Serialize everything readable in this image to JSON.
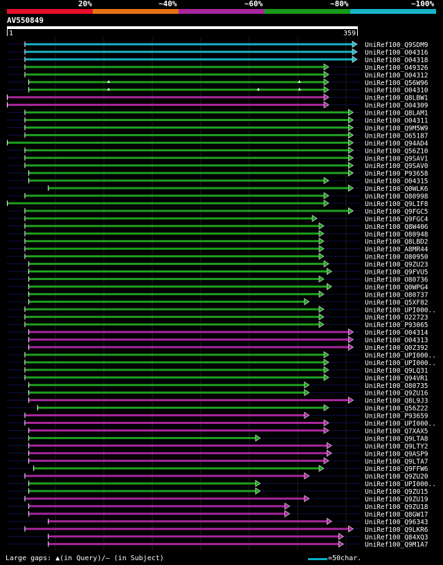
{
  "legend": {
    "bins": [
      {
        "label": "20%",
        "color": "#e8102a"
      },
      {
        "label": "~40%",
        "color": "#e57217"
      },
      {
        "label": "~60%",
        "color": "#a8279d"
      },
      {
        "label": "~80%",
        "color": "#1a9a1a"
      },
      {
        "label": "~100%",
        "color": "#18b4c8"
      }
    ]
  },
  "query": {
    "name": "AV550849",
    "start": "1",
    "end": "359",
    "length": 359
  },
  "chart_data": {
    "type": "alignment",
    "colors": {
      "cyan": "#18b4c8",
      "green": "#1fa01f",
      "magenta": "#a8279d"
    },
    "hits": [
      {
        "name": "UniRef100_Q9SDM9",
        "color": "cyan",
        "segments": [
          [
            19,
            359
          ]
        ]
      },
      {
        "name": "UniRef100_O04316",
        "color": "cyan",
        "segments": [
          [
            19,
            359
          ]
        ]
      },
      {
        "name": "UniRef100_O04318",
        "color": "cyan",
        "segments": [
          [
            19,
            359
          ]
        ]
      },
      {
        "name": "UniRef100_O49326",
        "color": "green",
        "segments": [
          [
            19,
            330
          ]
        ]
      },
      {
        "name": "UniRef100_O04312",
        "color": "green",
        "segments": [
          [
            19,
            330
          ]
        ]
      },
      {
        "name": "UniRef100_Q56W96",
        "color": "green",
        "segments": [
          [
            23,
            330
          ]
        ],
        "gaps": [
          105,
          300
        ]
      },
      {
        "name": "UniRef100_O04310",
        "color": "green",
        "segments": [
          [
            23,
            330
          ]
        ],
        "gaps": [
          105,
          258,
          300
        ]
      },
      {
        "name": "UniRef100_Q8LBW1",
        "color": "magenta",
        "segments": [
          [
            1,
            330
          ]
        ]
      },
      {
        "name": "UniRef100_O04309",
        "color": "magenta",
        "segments": [
          [
            1,
            330
          ]
        ]
      },
      {
        "name": "UniRef100_Q8LAM1",
        "color": "green",
        "segments": [
          [
            19,
            355
          ]
        ]
      },
      {
        "name": "UniRef100_O04311",
        "color": "green",
        "segments": [
          [
            19,
            355
          ]
        ]
      },
      {
        "name": "UniRef100_Q9M5W9",
        "color": "green",
        "segments": [
          [
            19,
            355
          ]
        ]
      },
      {
        "name": "UniRef100_O65187",
        "color": "green",
        "segments": [
          [
            19,
            355
          ]
        ]
      },
      {
        "name": "UniRef100_Q94AD4",
        "color": "green",
        "segments": [
          [
            1,
            355
          ]
        ]
      },
      {
        "name": "UniRef100_Q56Z10",
        "color": "green",
        "segments": [
          [
            19,
            355
          ]
        ]
      },
      {
        "name": "UniRef100_Q9SAV1",
        "color": "green",
        "segments": [
          [
            19,
            355
          ]
        ]
      },
      {
        "name": "UniRef100_Q9SAV0",
        "color": "green",
        "segments": [
          [
            19,
            355
          ]
        ]
      },
      {
        "name": "UniRef100_P93658",
        "color": "green",
        "segments": [
          [
            23,
            355
          ]
        ]
      },
      {
        "name": "UniRef100_O04315",
        "color": "green",
        "segments": [
          [
            23,
            330
          ]
        ]
      },
      {
        "name": "UniRef100_Q0WLK6",
        "color": "green",
        "segments": [
          [
            43,
            355
          ]
        ]
      },
      {
        "name": "UniRef100_O80998",
        "color": "green",
        "segments": [
          [
            19,
            330
          ]
        ]
      },
      {
        "name": "UniRef100_Q9LIF8",
        "color": "green",
        "segments": [
          [
            1,
            330
          ]
        ]
      },
      {
        "name": "UniRef100_Q9FGC5",
        "color": "green",
        "segments": [
          [
            19,
            355
          ]
        ]
      },
      {
        "name": "UniRef100_Q9FGC4",
        "color": "green",
        "segments": [
          [
            19,
            318
          ]
        ]
      },
      {
        "name": "UniRef100_Q8W406",
        "color": "green",
        "segments": [
          [
            19,
            325
          ]
        ]
      },
      {
        "name": "UniRef100_O80948",
        "color": "green",
        "segments": [
          [
            19,
            325
          ]
        ]
      },
      {
        "name": "UniRef100_Q8LBD2",
        "color": "green",
        "segments": [
          [
            19,
            325
          ]
        ]
      },
      {
        "name": "UniRef100_A8MR44",
        "color": "green",
        "segments": [
          [
            19,
            325
          ]
        ]
      },
      {
        "name": "UniRef100_O80950",
        "color": "green",
        "segments": [
          [
            19,
            325
          ]
        ]
      },
      {
        "name": "UniRef100_Q9ZU23",
        "color": "green",
        "segments": [
          [
            23,
            330
          ]
        ]
      },
      {
        "name": "UniRef100_Q9FVU5",
        "color": "green",
        "segments": [
          [
            23,
            333
          ]
        ]
      },
      {
        "name": "UniRef100_O80736",
        "color": "green",
        "segments": [
          [
            23,
            325
          ]
        ]
      },
      {
        "name": "UniRef100_Q0WPG4",
        "color": "green",
        "segments": [
          [
            23,
            333
          ]
        ]
      },
      {
        "name": "UniRef100_O80737",
        "color": "green",
        "segments": [
          [
            23,
            325
          ]
        ]
      },
      {
        "name": "UniRef100_Q5XF82",
        "color": "green",
        "segments": [
          [
            23,
            310
          ]
        ]
      },
      {
        "name": "UniRef100_UPI000..",
        "color": "green",
        "segments": [
          [
            19,
            325
          ]
        ]
      },
      {
        "name": "UniRef100_O22723",
        "color": "green",
        "segments": [
          [
            19,
            325
          ]
        ]
      },
      {
        "name": "UniRef100_P93065",
        "color": "green",
        "segments": [
          [
            19,
            325
          ]
        ]
      },
      {
        "name": "UniRef100_O04314",
        "color": "magenta",
        "segments": [
          [
            23,
            355
          ]
        ]
      },
      {
        "name": "UniRef100_O04313",
        "color": "magenta",
        "segments": [
          [
            23,
            355
          ]
        ]
      },
      {
        "name": "UniRef100_Q0Z392",
        "color": "magenta",
        "segments": [
          [
            23,
            355
          ]
        ]
      },
      {
        "name": "UniRef100_UPI000..",
        "color": "green",
        "segments": [
          [
            19,
            330
          ]
        ]
      },
      {
        "name": "UniRef100_UPI000..",
        "color": "green",
        "segments": [
          [
            19,
            330
          ]
        ]
      },
      {
        "name": "UniRef100_Q9LQ31",
        "color": "green",
        "segments": [
          [
            19,
            330
          ]
        ]
      },
      {
        "name": "UniRef100_Q94VR1",
        "color": "green",
        "segments": [
          [
            19,
            330
          ]
        ]
      },
      {
        "name": "UniRef100_O80735",
        "color": "green",
        "segments": [
          [
            23,
            310
          ]
        ]
      },
      {
        "name": "UniRef100_Q9ZU16",
        "color": "green",
        "segments": [
          [
            23,
            310
          ]
        ]
      },
      {
        "name": "UniRef100_Q8L9J3",
        "color": "magenta",
        "segments": [
          [
            23,
            355
          ]
        ]
      },
      {
        "name": "UniRef100_Q56Z22",
        "color": "green",
        "segments": [
          [
            32,
            330
          ]
        ]
      },
      {
        "name": "UniRef100_P93659",
        "color": "magenta",
        "segments": [
          [
            19,
            310
          ]
        ]
      },
      {
        "name": "UniRef100_UPI000..",
        "color": "magenta",
        "segments": [
          [
            19,
            330
          ]
        ]
      },
      {
        "name": "UniRef100_Q7XAX5",
        "color": "magenta",
        "segments": [
          [
            23,
            330
          ]
        ]
      },
      {
        "name": "UniRef100_Q9LTA8",
        "color": "green",
        "segments": [
          [
            23,
            260
          ]
        ]
      },
      {
        "name": "UniRef100_Q9LTY2",
        "color": "magenta",
        "segments": [
          [
            23,
            333
          ]
        ]
      },
      {
        "name": "UniRef100_Q9ASP9",
        "color": "magenta",
        "segments": [
          [
            23,
            333
          ]
        ]
      },
      {
        "name": "UniRef100_Q9LTA7",
        "color": "magenta",
        "segments": [
          [
            23,
            330
          ]
        ]
      },
      {
        "name": "UniRef100_Q9FFW6",
        "color": "green",
        "segments": [
          [
            28,
            325
          ]
        ]
      },
      {
        "name": "UniRef100_Q9ZU20",
        "color": "magenta",
        "segments": [
          [
            19,
            310
          ]
        ]
      },
      {
        "name": "UniRef100_UPI000..",
        "color": "green",
        "segments": [
          [
            23,
            260
          ]
        ]
      },
      {
        "name": "UniRef100_Q9ZU15",
        "color": "green",
        "segments": [
          [
            23,
            260
          ]
        ]
      },
      {
        "name": "UniRef100_Q9ZU19",
        "color": "magenta",
        "segments": [
          [
            19,
            310
          ]
        ]
      },
      {
        "name": "UniRef100_Q9ZU18",
        "color": "magenta",
        "segments": [
          [
            23,
            290
          ]
        ]
      },
      {
        "name": "UniRef100_Q8GW17",
        "color": "magenta",
        "segments": [
          [
            23,
            290
          ]
        ]
      },
      {
        "name": "UniRef100_Q96343",
        "color": "magenta",
        "segments": [
          [
            43,
            333
          ]
        ]
      },
      {
        "name": "UniRef100_Q9LKR6",
        "color": "magenta",
        "segments": [
          [
            19,
            355
          ]
        ]
      },
      {
        "name": "UniRef100_Q84XQ3",
        "color": "magenta",
        "segments": [
          [
            43,
            345
          ]
        ]
      },
      {
        "name": "UniRef100_Q9M1A7",
        "color": "magenta",
        "segments": [
          [
            43,
            345
          ]
        ]
      }
    ]
  },
  "footer": {
    "gaps_note": "Large gaps: ▲(in Query)/– (in Subject)",
    "scale_note": "=50char."
  }
}
